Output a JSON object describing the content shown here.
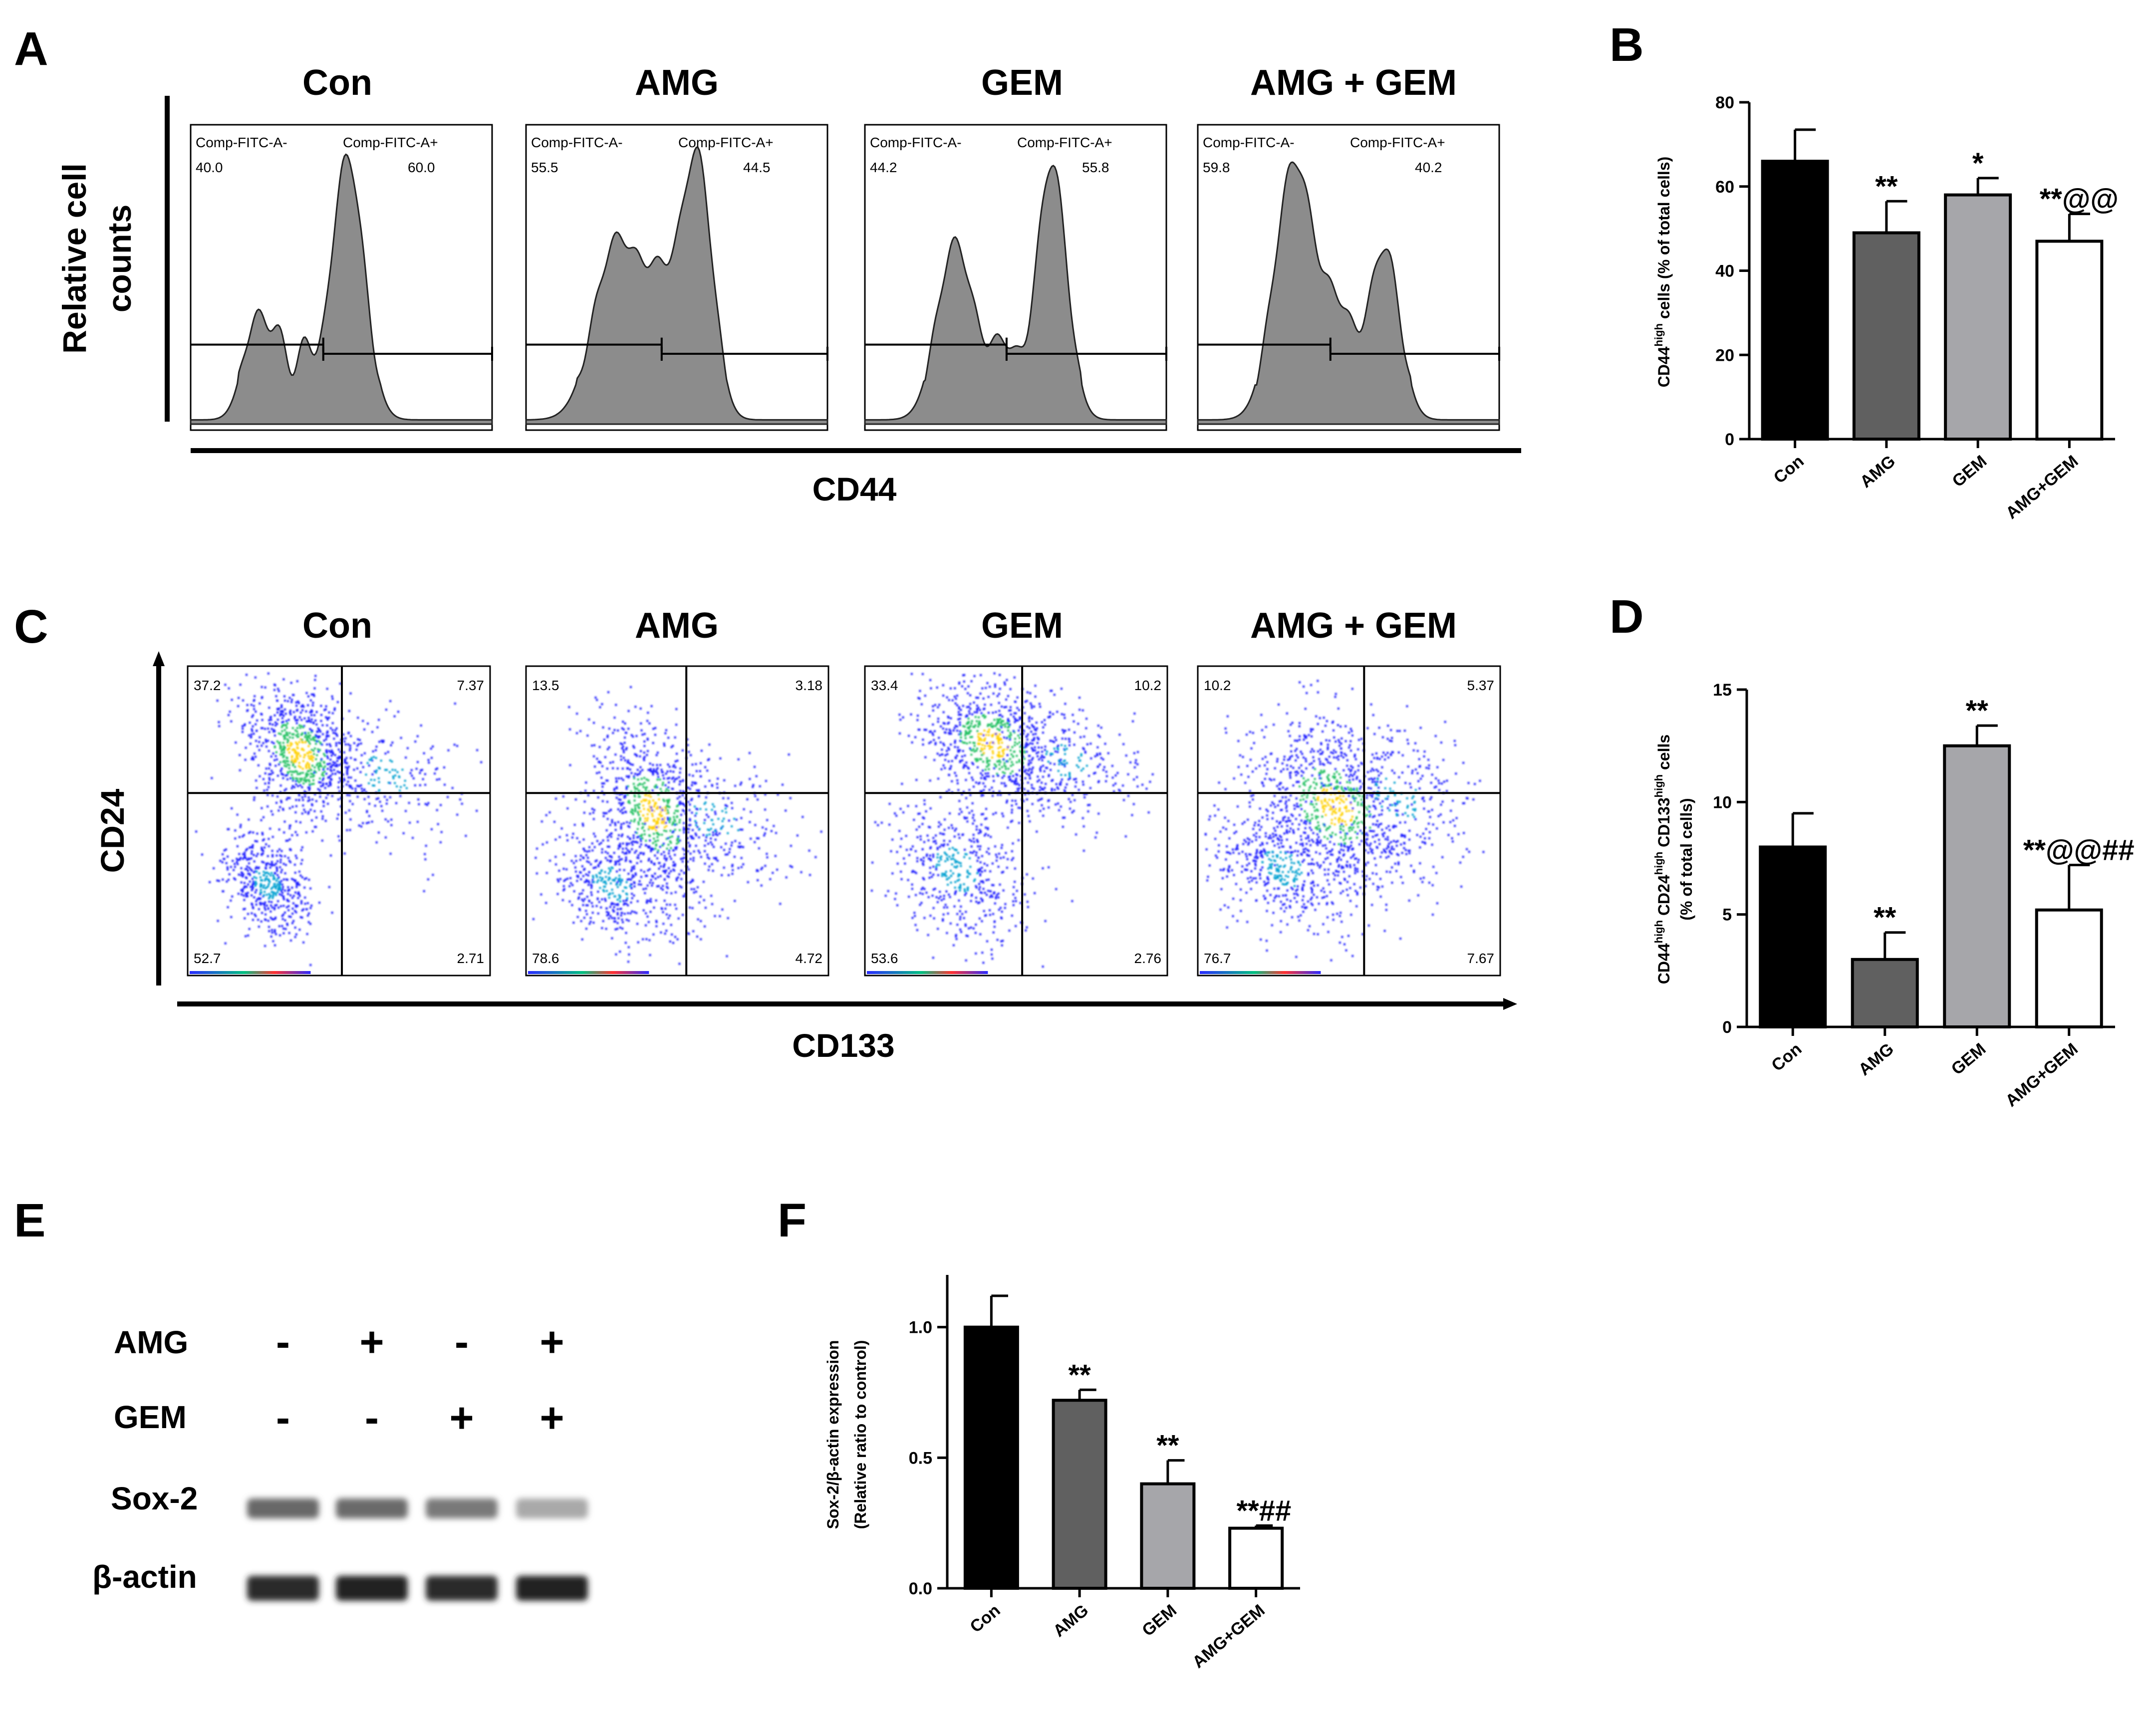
{
  "panel_labels": [
    "A",
    "B",
    "C",
    "D",
    "E",
    "F"
  ],
  "groups": [
    "Con",
    "AMG",
    "GEM",
    "AMG + GEM"
  ],
  "panel_a": {
    "ylabel_line1": "Relative cell",
    "ylabel_line2": "counts",
    "xlabel": "CD44",
    "gate_neg_label": "Comp-FITC-A-",
    "gate_pos_label": "Comp-FITC-A+",
    "histograms": [
      {
        "neg": "40.0",
        "pos": "60.0"
      },
      {
        "neg": "55.5",
        "pos": "44.5"
      },
      {
        "neg": "44.2",
        "pos": "55.8"
      },
      {
        "neg": "59.8",
        "pos": "40.2"
      }
    ]
  },
  "panel_c": {
    "ylabel": "CD24",
    "xlabel": "CD133",
    "quadrants": [
      {
        "ul": "37.2",
        "ur": "7.37",
        "ll": "52.7",
        "lr": "2.71"
      },
      {
        "ul": "13.5",
        "ur": "3.18",
        "ll": "78.6",
        "lr": "4.72"
      },
      {
        "ul": "33.4",
        "ur": "10.2",
        "ll": "53.6",
        "lr": "2.76"
      },
      {
        "ul": "10.2",
        "ur": "5.37",
        "ll": "76.7",
        "lr": "7.67"
      }
    ]
  },
  "panel_e": {
    "row_labels": [
      "AMG",
      "GEM",
      "Sox-2",
      "β-actin"
    ],
    "amg_signs": [
      "-",
      "+",
      "-",
      "+"
    ],
    "gem_signs": [
      "-",
      "-",
      "+",
      "+"
    ],
    "sox2_band_intensity": [
      0.6,
      0.58,
      0.52,
      0.3
    ],
    "actin_band_intensity": [
      0.88,
      0.92,
      0.88,
      0.92
    ]
  },
  "colors": {
    "bar_con": "#000000",
    "bar_amg": "#606060",
    "bar_gem": "#a6a6aa",
    "bar_combo": "#ffffff",
    "hist_fill": "#8c8c8c"
  },
  "chart_data": [
    {
      "id": "B",
      "type": "bar",
      "categories": [
        "Con",
        "AMG",
        "GEM",
        "AMG+GEM"
      ],
      "values": [
        66,
        49,
        58,
        47
      ],
      "errors": [
        7.5,
        7.5,
        4,
        6.5
      ],
      "annotations": [
        "",
        "**",
        "*",
        "**@@"
      ],
      "ylabel": "CD44high cells (% of total cells)",
      "ylabel_main": "CD44",
      "ylabel_sup": "high",
      "ylabel_rest": " cells (% of total cells)",
      "ylim": [
        0,
        80
      ],
      "yticks": [
        "0",
        "20",
        "40",
        "60",
        "80"
      ]
    },
    {
      "id": "D",
      "type": "bar",
      "categories": [
        "Con",
        "AMG",
        "GEM",
        "AMG+GEM"
      ],
      "values": [
        8,
        3,
        12.5,
        5.2
      ],
      "errors": [
        1.5,
        1.2,
        0.9,
        2
      ],
      "annotations": [
        "",
        "**",
        "**",
        "**@@##"
      ],
      "ylabel": "CD44high CD24high CD133high cells (% of total cells)",
      "ylabel_line1_parts": [
        "CD44",
        "high",
        " CD24",
        "high",
        " CD133",
        "high",
        " cells"
      ],
      "ylabel_line2": "(% of total cells)",
      "ylim": [
        0,
        15
      ],
      "yticks": [
        "0",
        "5",
        "10",
        "15"
      ]
    },
    {
      "id": "F",
      "type": "bar",
      "categories": [
        "Con",
        "AMG",
        "GEM",
        "AMG+GEM"
      ],
      "values": [
        1.0,
        0.72,
        0.4,
        0.23
      ],
      "errors": [
        0.12,
        0.04,
        0.09,
        0.01
      ],
      "annotations": [
        "",
        "**",
        "**",
        "**##"
      ],
      "ylabel_line1": "Sox-2/β-actin expression",
      "ylabel_line2": "(Relative ratio to control)",
      "ylim": [
        0,
        1.2
      ],
      "yticks": [
        "0.0",
        "0.5",
        "1.0"
      ]
    }
  ]
}
